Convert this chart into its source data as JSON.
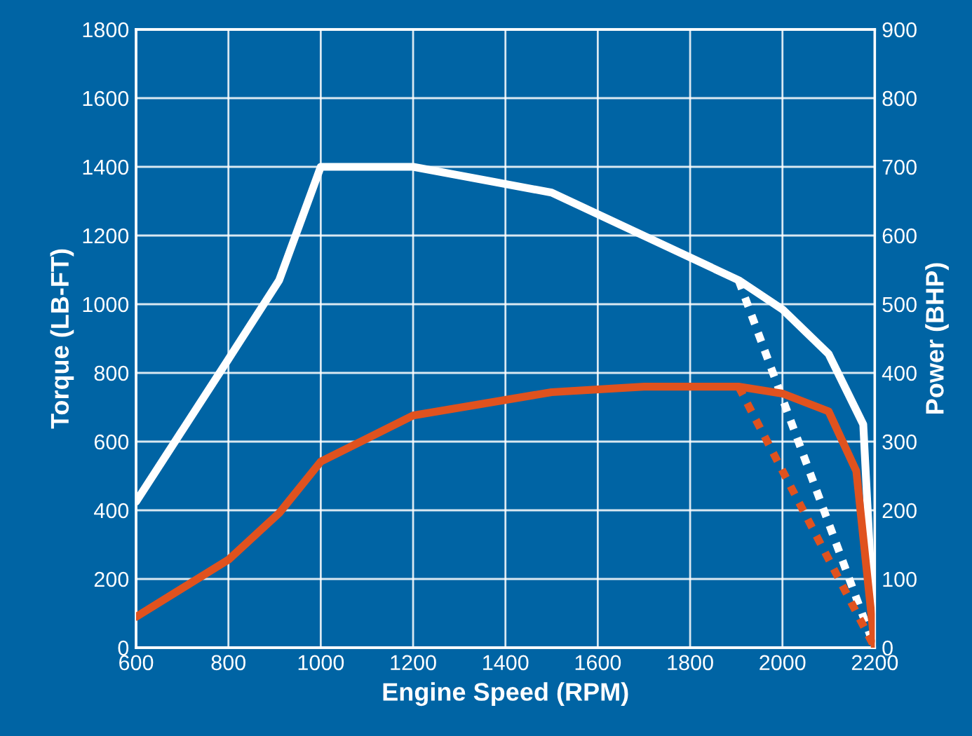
{
  "chart_data": {
    "type": "line",
    "xlabel": "Engine Speed (RPM)",
    "ylabel": "Torque (LB-FT)",
    "y2label": "Power (BHP)",
    "xlim": [
      600,
      2200
    ],
    "xticks": [
      600,
      800,
      1000,
      1200,
      1400,
      1600,
      1800,
      2000,
      2200
    ],
    "ylim": [
      0,
      1800
    ],
    "yticks": [
      0,
      200,
      400,
      600,
      800,
      1000,
      1200,
      1400,
      1600,
      1800
    ],
    "y2lim": [
      0,
      900
    ],
    "y2ticks": [
      0,
      100,
      200,
      300,
      400,
      500,
      600,
      700,
      800,
      900
    ],
    "grid": true,
    "series": [
      {
        "color": "#ffffff",
        "axis": "y",
        "line_style": "solid",
        "x": [
          600,
          800,
          910,
          1000,
          1200,
          1500,
          1905,
          2000,
          2100,
          2175,
          2200
        ],
        "values": [
          425,
          840,
          1070,
          1400,
          1400,
          1325,
          1070,
          985,
          855,
          650,
          0
        ]
      },
      {
        "color": "#e0521e",
        "axis": "y2",
        "line_style": "solid",
        "x": [
          600,
          800,
          910,
          1000,
          1200,
          1500,
          1700,
          1905,
          2000,
          2100,
          2160,
          2200
        ],
        "values": [
          45,
          128,
          196,
          271,
          338,
          372,
          380,
          380,
          370,
          344,
          257,
          0
        ]
      },
      {
        "color": "#ffffff",
        "axis": "y",
        "line_style": "dotted",
        "x": [
          1905,
          2200
        ],
        "values": [
          1070,
          0
        ]
      },
      {
        "color": "#e0521e",
        "axis": "y2",
        "line_style": "dotted",
        "x": [
          1905,
          2200
        ],
        "values": [
          380,
          0
        ]
      }
    ]
  }
}
